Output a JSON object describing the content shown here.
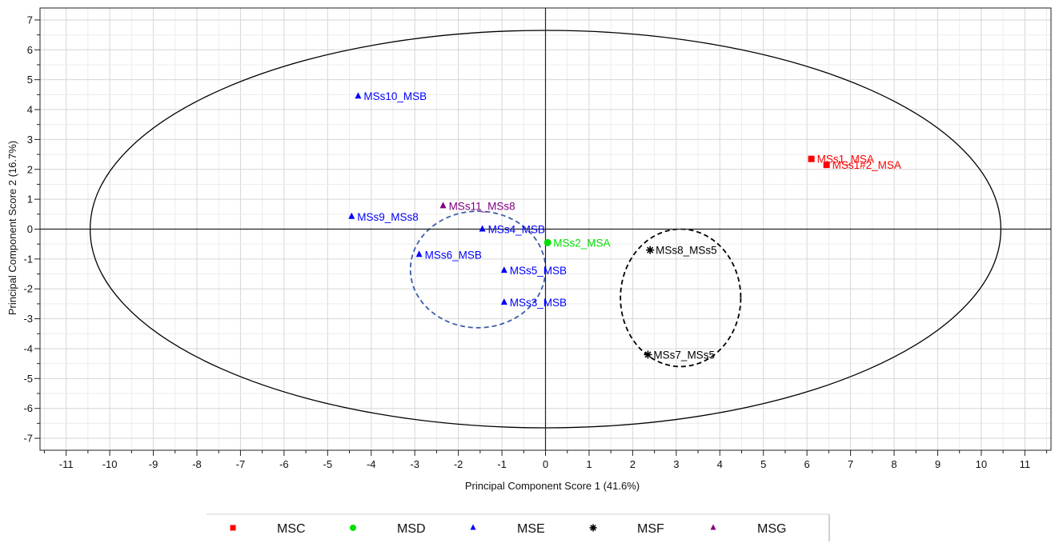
{
  "chart_data": {
    "type": "scatter",
    "xlabel": "Principal Component Score 1 (41.6%)",
    "ylabel": "Principal Component Score 2 (16.7%)",
    "xlim": [
      -11.6,
      11.6
    ],
    "ylim": [
      -7.4,
      7.4
    ],
    "xticks": [
      -11,
      -10,
      -9,
      -8,
      -7,
      -6,
      -5,
      -4,
      -3,
      -2,
      -1,
      0,
      1,
      2,
      3,
      4,
      5,
      6,
      7,
      8,
      9,
      10,
      11
    ],
    "yticks": [
      -7,
      -6,
      -5,
      -4,
      -3,
      -2,
      -1,
      0,
      1,
      2,
      3,
      4,
      5,
      6,
      7
    ],
    "grid": true,
    "legend_position": "bottom",
    "series": [
      {
        "name": "MSC",
        "color": "#ff0000",
        "marker": "square",
        "points": [
          {
            "label": "MSs1_MSA",
            "x": 6.1,
            "y": 2.35
          },
          {
            "label": "MSs1#2_MSA",
            "x": 6.45,
            "y": 2.15
          }
        ]
      },
      {
        "name": "MSD",
        "color": "#00e000",
        "marker": "circle",
        "points": [
          {
            "label": "MSs2_MSA",
            "x": 0.05,
            "y": -0.45
          }
        ]
      },
      {
        "name": "MSE",
        "color": "#0000ff",
        "marker": "triangle",
        "points": [
          {
            "label": "MSs10_MSB",
            "x": -4.3,
            "y": 4.45
          },
          {
            "label": "MSs9_MSs8",
            "x": -4.45,
            "y": 0.42
          },
          {
            "label": "MSs4_MSB",
            "x": -1.45,
            "y": 0.0
          },
          {
            "label": "MSs6_MSB",
            "x": -2.9,
            "y": -0.85
          },
          {
            "label": "MSs5_MSB",
            "x": -0.95,
            "y": -1.38
          },
          {
            "label": "MSs3_MSB",
            "x": -0.95,
            "y": -2.45
          }
        ]
      },
      {
        "name": "MSF",
        "color": "#000000",
        "marker": "asterisk",
        "points": [
          {
            "label": "MSs8_MSs5",
            "x": 2.4,
            "y": -0.7
          },
          {
            "label": "MSs7_MSs5",
            "x": 2.35,
            "y": -4.2
          }
        ]
      },
      {
        "name": "MSG",
        "color": "#800080",
        "marker": "triangle",
        "points": [
          {
            "label": "MSs11_MSs8",
            "x": -2.35,
            "y": 0.78
          }
        ]
      }
    ],
    "confidence_ellipse": {
      "cx": 0,
      "cy": 0,
      "rx": 10.45,
      "ry": 6.65,
      "color": "#000000"
    },
    "group_ellipses": [
      {
        "cx": -1.55,
        "cy": -1.35,
        "rx": 1.55,
        "ry": 1.95,
        "color": "#3b5ea6",
        "dashed": true
      },
      {
        "cx": 3.1,
        "cy": -2.3,
        "rx": 1.38,
        "ry": 2.3,
        "color": "#000000",
        "dashed": true
      }
    ]
  }
}
